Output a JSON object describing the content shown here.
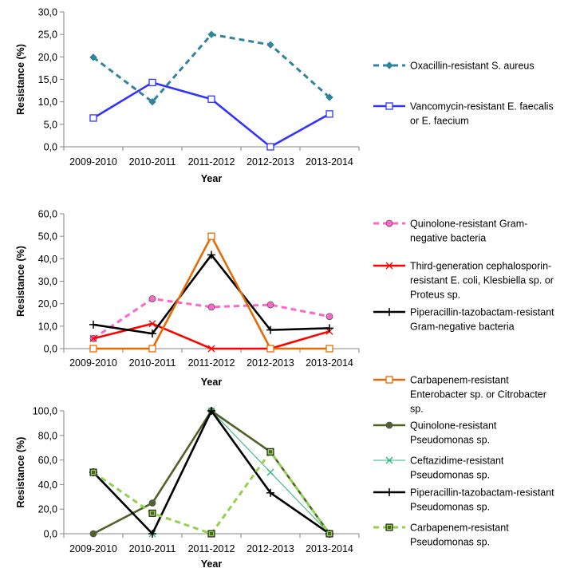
{
  "chart_data": [
    {
      "type": "line",
      "categories": [
        "2009-2010",
        "2010-2011",
        "2011-2012",
        "2012-2013",
        "2013-2014"
      ],
      "ylim": [
        0,
        30
      ],
      "yticks": [
        "0,0",
        "5,0",
        "10,0",
        "15,0",
        "20,0",
        "25,0",
        "30,0"
      ],
      "xlabel": "Year",
      "ylabel": "Resistance (%)",
      "grid": false,
      "legend": "right",
      "series": [
        {
          "name": [
            "Oxacillin-resistant S. aureus"
          ],
          "values": [
            19.9,
            10.0,
            25.0,
            22.7,
            11.0
          ],
          "color": "#31849b",
          "dash": "dashed",
          "marker": "diamond-filled"
        },
        {
          "name": [
            "Vancomycin-resistant E. faecalis",
            "or E. faecium"
          ],
          "values": [
            6.4,
            14.3,
            10.6,
            0.0,
            7.3
          ],
          "color": "#3333ff",
          "dash": "solid",
          "marker": "square-open"
        }
      ]
    },
    {
      "type": "line",
      "categories": [
        "2009-2010",
        "2010-2011",
        "2011-2012",
        "2012-2013",
        "2013-2014"
      ],
      "ylim": [
        0,
        60
      ],
      "yticks": [
        "0,0",
        "10,0",
        "20,0",
        "30,0",
        "40,0",
        "50,0",
        "60,0"
      ],
      "xlabel": "Year",
      "ylabel": "Resistance (%)",
      "grid": false,
      "legend": "right",
      "series": [
        {
          "name": [
            "Quinolone-resistant Gram-",
            "negative bacteria"
          ],
          "values": [
            4.5,
            22.2,
            18.5,
            19.5,
            14.3
          ],
          "color": "#ff66cc",
          "dash": "dashed",
          "marker": "circle-filled"
        },
        {
          "name": [
            "Third-generation cephalosporin-",
            "resistant E. coli, Klesbiella sp. or",
            "Proteus sp."
          ],
          "values": [
            4.5,
            11.1,
            0.0,
            0.0,
            7.7
          ],
          "color": "#ff0000",
          "dash": "solid",
          "marker": "x"
        },
        {
          "name": [
            "Piperacillin-tazobactam-resistant",
            "Gram-negative bacteria"
          ],
          "values": [
            10.7,
            6.7,
            41.7,
            8.3,
            9.1
          ],
          "color": "#000000",
          "dash": "solid",
          "marker": "plus"
        },
        {
          "name": [
            "Carbapenem-resistant",
            "Enterobacter sp. or Citrobacter",
            "sp."
          ],
          "values": [
            0.0,
            0.0,
            50.0,
            0.0,
            0.0
          ],
          "color": "#e36c09",
          "dash": "solid",
          "marker": "square-open"
        }
      ]
    },
    {
      "type": "line",
      "categories": [
        "2009-2010",
        "2010-2011",
        "2011-2012",
        "2012-2013",
        "2013-2014"
      ],
      "ylim": [
        0,
        100
      ],
      "yticks": [
        "0,0",
        "20,0",
        "40,0",
        "60,0",
        "80,0",
        "100,0"
      ],
      "xlabel": "Year",
      "ylabel": "Resistance (%)",
      "grid": false,
      "legend": "right",
      "series": [
        {
          "name": [
            "Quinolone-resistant",
            "Pseudomonas sp."
          ],
          "values": [
            0.0,
            25.0,
            100.0,
            66.7,
            0.0
          ],
          "color": "#4f6228",
          "dash": "solid",
          "marker": "circle-filled"
        },
        {
          "name": [
            "Ceftazidime-resistant",
            "Pseudomonas sp."
          ],
          "values": [
            50.0,
            0.0,
            100.0,
            50.0,
            0.0
          ],
          "color": "#2db37a",
          "dash": "thin",
          "marker": "x"
        },
        {
          "name": [
            "Piperacillin-tazobactam-resistant",
            "Pseudomonas sp."
          ],
          "values": [
            50.0,
            0.0,
            100.0,
            33.3,
            0.0
          ],
          "color": "#000000",
          "dash": "solid",
          "marker": "plus"
        },
        {
          "name": [
            "Carbapenem-resistant",
            "Pseudomonas sp."
          ],
          "values": [
            50.0,
            16.7,
            0.0,
            66.7,
            0.0
          ],
          "color": "#92d050",
          "dash": "dashed",
          "marker": "square-filled"
        }
      ]
    }
  ]
}
